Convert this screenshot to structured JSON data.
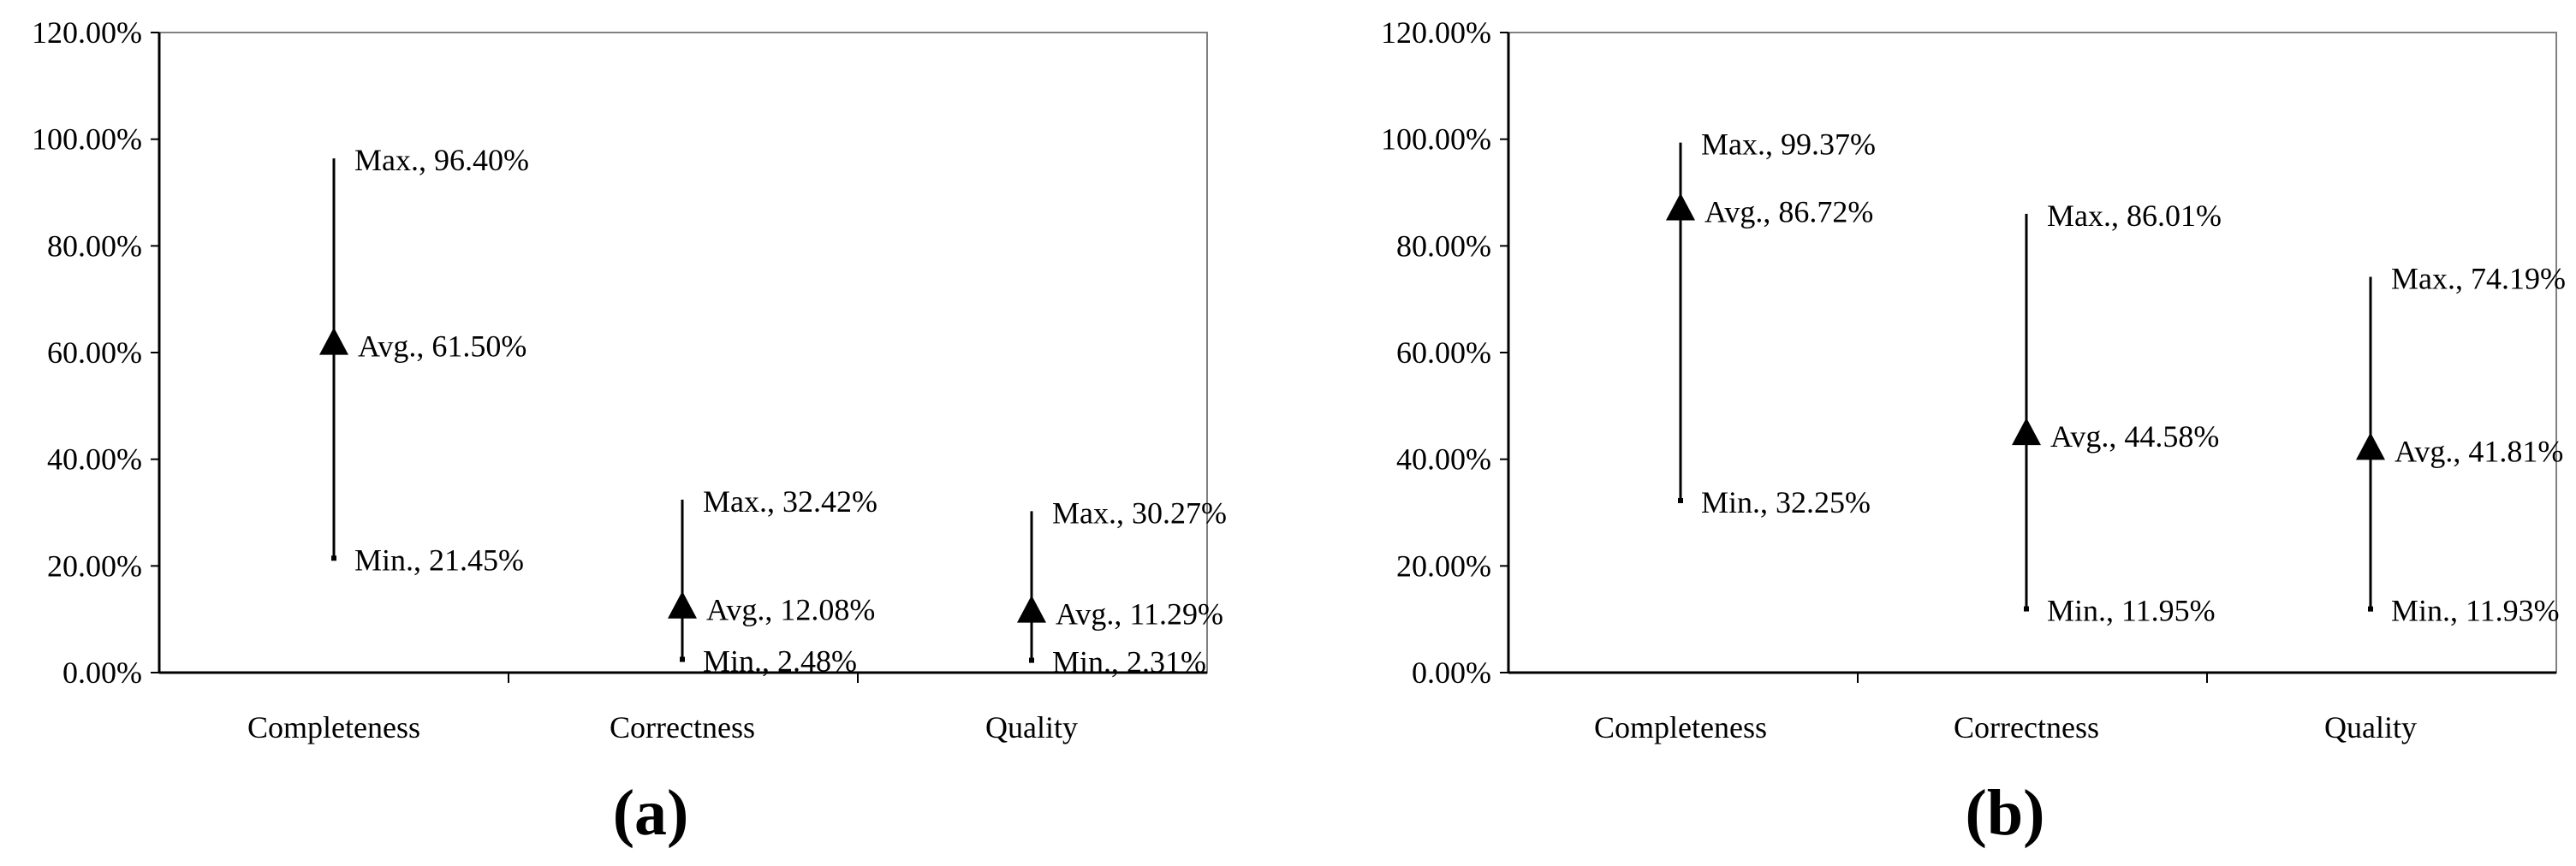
{
  "chart_data": [
    {
      "type": "range",
      "panel_label": "(a)",
      "categories": [
        "Completeness",
        "Correctness",
        "Quality"
      ],
      "series": [
        {
          "name": "Max.",
          "values": [
            96.4,
            32.42,
            30.27
          ]
        },
        {
          "name": "Avg.",
          "values": [
            61.5,
            12.08,
            11.29
          ]
        },
        {
          "name": "Min.",
          "values": [
            21.45,
            2.48,
            2.31
          ]
        }
      ],
      "labels": {
        "max": [
          "Max., 96.40%",
          "Max., 32.42%",
          "Max., 30.27%"
        ],
        "avg": [
          "Avg., 61.50%",
          "Avg., 12.08%",
          "Avg., 11.29%"
        ],
        "min": [
          "Min., 21.45%",
          "Min., 2.48%",
          "Min., 2.31%"
        ]
      },
      "yticks": [
        "0.00%",
        "20.00%",
        "40.00%",
        "60.00%",
        "80.00%",
        "100.00%",
        "120.00%"
      ],
      "ylim": [
        0,
        120
      ],
      "title": "",
      "xlabel": "",
      "ylabel": "",
      "grid": false
    },
    {
      "type": "range",
      "panel_label": "(b)",
      "categories": [
        "Completeness",
        "Correctness",
        "Quality"
      ],
      "series": [
        {
          "name": "Max.",
          "values": [
            99.37,
            86.01,
            74.19
          ]
        },
        {
          "name": "Avg.",
          "values": [
            86.72,
            44.58,
            41.81
          ]
        },
        {
          "name": "Min.",
          "values": [
            32.25,
            11.95,
            11.93
          ]
        }
      ],
      "labels": {
        "max": [
          "Max., 99.37%",
          "Max., 86.01%",
          "Max., 74.19%"
        ],
        "avg": [
          "Avg., 86.72%",
          "Avg., 44.58%",
          "Avg., 41.81%"
        ],
        "min": [
          "Min., 32.25%",
          "Min., 11.95%",
          "Min., 11.93%"
        ]
      },
      "yticks": [
        "0.00%",
        "20.00%",
        "40.00%",
        "60.00%",
        "80.00%",
        "100.00%",
        "120.00%"
      ],
      "ylim": [
        0,
        120
      ],
      "title": "",
      "xlabel": "",
      "ylabel": "",
      "grid": false
    }
  ]
}
